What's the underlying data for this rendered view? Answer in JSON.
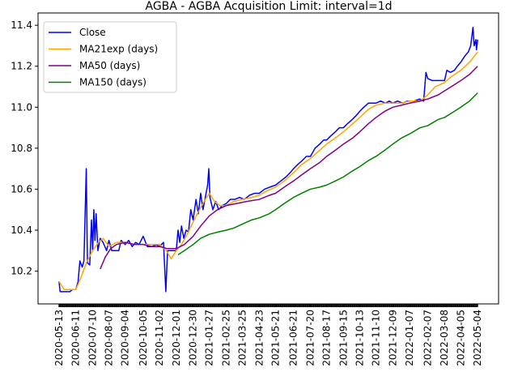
{
  "chart_data": {
    "type": "line",
    "title": "AGBA - AGBA Acquisition Limit: interval=1d",
    "xlabel": "",
    "ylabel": "",
    "ylim": [
      10.04,
      11.46
    ],
    "yticks": [
      "10.2",
      "10.4",
      "10.6",
      "10.8",
      "11.0",
      "11.2",
      "11.4"
    ],
    "x_start": "2020-05-13",
    "x_end": "2022-05-04",
    "xticks": [
      "2020-05-13",
      "2020-06-11",
      "2020-07-10",
      "2020-08-07",
      "2020-09-04",
      "2020-10-05",
      "2020-11-02",
      "2020-12-01",
      "2020-12-30",
      "2021-01-27",
      "2021-02-25",
      "2021-03-25",
      "2021-04-23",
      "2021-05-21",
      "2021-06-21",
      "2021-07-20",
      "2021-08-17",
      "2021-09-15",
      "2021-10-13",
      "2021-11-10",
      "2021-12-09",
      "2022-01-07",
      "2022-02-07",
      "2022-03-08",
      "2022-04-05",
      "2022-05-04"
    ],
    "legend_position": "top-left",
    "grid": false,
    "series": [
      {
        "name": "Close",
        "color": "#0000ff",
        "points": [
          [
            "2020-05-13",
            10.15
          ],
          [
            "2020-05-15",
            10.1
          ],
          [
            "2020-05-22",
            10.1
          ],
          [
            "2020-06-01",
            10.1
          ],
          [
            "2020-06-05",
            10.11
          ],
          [
            "2020-06-11",
            10.11
          ],
          [
            "2020-06-15",
            10.15
          ],
          [
            "2020-06-18",
            10.25
          ],
          [
            "2020-06-22",
            10.22
          ],
          [
            "2020-06-25",
            10.25
          ],
          [
            "2020-06-29",
            10.7
          ],
          [
            "2020-07-01",
            10.24
          ],
          [
            "2020-07-05",
            10.23
          ],
          [
            "2020-07-08",
            10.45
          ],
          [
            "2020-07-10",
            10.3
          ],
          [
            "2020-07-12",
            10.5
          ],
          [
            "2020-07-14",
            10.35
          ],
          [
            "2020-07-16",
            10.48
          ],
          [
            "2020-07-19",
            10.3
          ],
          [
            "2020-07-23",
            10.36
          ],
          [
            "2020-07-28",
            10.34
          ],
          [
            "2020-08-03",
            10.3
          ],
          [
            "2020-08-07",
            10.35
          ],
          [
            "2020-08-12",
            10.3
          ],
          [
            "2020-08-18",
            10.3
          ],
          [
            "2020-08-24",
            10.3
          ],
          [
            "2020-08-28",
            10.35
          ],
          [
            "2020-09-04",
            10.33
          ],
          [
            "2020-09-10",
            10.35
          ],
          [
            "2020-09-16",
            10.32
          ],
          [
            "2020-09-22",
            10.34
          ],
          [
            "2020-09-28",
            10.33
          ],
          [
            "2020-10-05",
            10.37
          ],
          [
            "2020-10-12",
            10.32
          ],
          [
            "2020-10-20",
            10.32
          ],
          [
            "2020-10-28",
            10.33
          ],
          [
            "2020-11-02",
            10.32
          ],
          [
            "2020-11-09",
            10.34
          ],
          [
            "2020-11-13",
            10.1
          ],
          [
            "2020-11-16",
            10.3
          ],
          [
            "2020-11-20",
            10.3
          ],
          [
            "2020-11-26",
            10.3
          ],
          [
            "2020-12-01",
            10.3
          ],
          [
            "2020-12-04",
            10.4
          ],
          [
            "2020-12-07",
            10.34
          ],
          [
            "2020-12-10",
            10.42
          ],
          [
            "2020-12-14",
            10.36
          ],
          [
            "2020-12-18",
            10.4
          ],
          [
            "2020-12-22",
            10.39
          ],
          [
            "2020-12-26",
            10.5
          ],
          [
            "2020-12-30",
            10.45
          ],
          [
            "2021-01-04",
            10.55
          ],
          [
            "2021-01-08",
            10.48
          ],
          [
            "2021-01-12",
            10.58
          ],
          [
            "2021-01-16",
            10.5
          ],
          [
            "2021-01-20",
            10.56
          ],
          [
            "2021-01-24",
            10.62
          ],
          [
            "2021-01-26",
            10.7
          ],
          [
            "2021-01-28",
            10.56
          ],
          [
            "2021-02-02",
            10.5
          ],
          [
            "2021-02-07",
            10.54
          ],
          [
            "2021-02-12",
            10.5
          ],
          [
            "2021-02-18",
            10.52
          ],
          [
            "2021-02-25",
            10.53
          ],
          [
            "2021-03-04",
            10.55
          ],
          [
            "2021-03-12",
            10.55
          ],
          [
            "2021-03-20",
            10.56
          ],
          [
            "2021-03-28",
            10.55
          ],
          [
            "2021-04-06",
            10.57
          ],
          [
            "2021-04-15",
            10.58
          ],
          [
            "2021-04-23",
            10.58
          ],
          [
            "2021-05-02",
            10.6
          ],
          [
            "2021-05-11",
            10.61
          ],
          [
            "2021-05-21",
            10.62
          ],
          [
            "2021-05-30",
            10.64
          ],
          [
            "2021-06-08",
            10.66
          ],
          [
            "2021-06-15",
            10.68
          ],
          [
            "2021-06-21",
            10.7
          ],
          [
            "2021-06-28",
            10.72
          ],
          [
            "2021-07-06",
            10.74
          ],
          [
            "2021-07-13",
            10.76
          ],
          [
            "2021-07-20",
            10.76
          ],
          [
            "2021-07-28",
            10.8
          ],
          [
            "2021-08-05",
            10.82
          ],
          [
            "2021-08-12",
            10.84
          ],
          [
            "2021-08-17",
            10.84
          ],
          [
            "2021-08-24",
            10.86
          ],
          [
            "2021-09-01",
            10.88
          ],
          [
            "2021-09-08",
            10.9
          ],
          [
            "2021-09-15",
            10.9
          ],
          [
            "2021-09-22",
            10.92
          ],
          [
            "2021-09-30",
            10.94
          ],
          [
            "2021-10-07",
            10.96
          ],
          [
            "2021-10-13",
            10.98
          ],
          [
            "2021-10-20",
            11.0
          ],
          [
            "2021-10-28",
            11.02
          ],
          [
            "2021-11-04",
            11.02
          ],
          [
            "2021-11-10",
            11.02
          ],
          [
            "2021-11-18",
            11.03
          ],
          [
            "2021-11-26",
            11.02
          ],
          [
            "2021-12-03",
            11.03
          ],
          [
            "2021-12-09",
            11.02
          ],
          [
            "2021-12-17",
            11.03
          ],
          [
            "2021-12-26",
            11.02
          ],
          [
            "2022-01-03",
            11.03
          ],
          [
            "2022-01-07",
            11.03
          ],
          [
            "2022-01-15",
            11.03
          ],
          [
            "2022-01-24",
            11.04
          ],
          [
            "2022-01-31",
            11.03
          ],
          [
            "2022-02-04",
            11.17
          ],
          [
            "2022-02-07",
            11.14
          ],
          [
            "2022-02-15",
            11.13
          ],
          [
            "2022-02-24",
            11.13
          ],
          [
            "2022-03-04",
            11.13
          ],
          [
            "2022-03-08",
            11.13
          ],
          [
            "2022-03-12",
            11.18
          ],
          [
            "2022-03-18",
            11.17
          ],
          [
            "2022-03-25",
            11.18
          ],
          [
            "2022-03-30",
            11.2
          ],
          [
            "2022-04-05",
            11.22
          ],
          [
            "2022-04-12",
            11.25
          ],
          [
            "2022-04-18",
            11.27
          ],
          [
            "2022-04-22",
            11.3
          ],
          [
            "2022-04-26",
            11.39
          ],
          [
            "2022-04-28",
            11.3
          ],
          [
            "2022-05-01",
            11.33
          ],
          [
            "2022-05-02",
            11.28
          ],
          [
            "2022-05-04",
            11.33
          ]
        ]
      },
      {
        "name": "MA21exp (days)",
        "color": "#ffa500",
        "points": [
          [
            "2020-05-13",
            10.15
          ],
          [
            "2020-05-22",
            10.11
          ],
          [
            "2020-06-01",
            10.11
          ],
          [
            "2020-06-11",
            10.11
          ],
          [
            "2020-06-20",
            10.17
          ],
          [
            "2020-06-29",
            10.24
          ],
          [
            "2020-07-10",
            10.3
          ],
          [
            "2020-07-20",
            10.34
          ],
          [
            "2020-07-28",
            10.36
          ],
          [
            "2020-08-07",
            10.32
          ],
          [
            "2020-08-20",
            10.34
          ],
          [
            "2020-09-04",
            10.34
          ],
          [
            "2020-09-20",
            10.33
          ],
          [
            "2020-10-05",
            10.33
          ],
          [
            "2020-10-20",
            10.33
          ],
          [
            "2020-11-02",
            10.33
          ],
          [
            "2020-11-14",
            10.3
          ],
          [
            "2020-11-22",
            10.26
          ],
          [
            "2020-12-01",
            10.3
          ],
          [
            "2020-12-10",
            10.33
          ],
          [
            "2020-12-20",
            10.38
          ],
          [
            "2020-12-30",
            10.44
          ],
          [
            "2021-01-10",
            10.5
          ],
          [
            "2021-01-20",
            10.55
          ],
          [
            "2021-01-27",
            10.58
          ],
          [
            "2021-02-05",
            10.54
          ],
          [
            "2021-02-14",
            10.52
          ],
          [
            "2021-02-25",
            10.52
          ],
          [
            "2021-03-10",
            10.54
          ],
          [
            "2021-03-25",
            10.55
          ],
          [
            "2021-04-10",
            10.56
          ],
          [
            "2021-04-23",
            10.57
          ],
          [
            "2021-05-05",
            10.59
          ],
          [
            "2021-05-21",
            10.61
          ],
          [
            "2021-06-05",
            10.64
          ],
          [
            "2021-06-21",
            10.68
          ],
          [
            "2021-07-05",
            10.72
          ],
          [
            "2021-07-20",
            10.75
          ],
          [
            "2021-08-05",
            10.79
          ],
          [
            "2021-08-17",
            10.82
          ],
          [
            "2021-09-01",
            10.85
          ],
          [
            "2021-09-15",
            10.88
          ],
          [
            "2021-10-01",
            10.92
          ],
          [
            "2021-10-13",
            10.95
          ],
          [
            "2021-10-28",
            10.99
          ],
          [
            "2021-11-10",
            11.01
          ],
          [
            "2021-11-25",
            11.02
          ],
          [
            "2021-12-09",
            11.02
          ],
          [
            "2021-12-24",
            11.02
          ],
          [
            "2022-01-07",
            11.03
          ],
          [
            "2022-01-25",
            11.03
          ],
          [
            "2022-02-07",
            11.06
          ],
          [
            "2022-02-20",
            11.1
          ],
          [
            "2022-03-08",
            11.12
          ],
          [
            "2022-03-20",
            11.15
          ],
          [
            "2022-04-05",
            11.18
          ],
          [
            "2022-04-20",
            11.22
          ],
          [
            "2022-05-04",
            11.27
          ]
        ]
      },
      {
        "name": "MA50 (days)",
        "color": "#800080",
        "points": [
          [
            "2020-07-23",
            10.21
          ],
          [
            "2020-08-01",
            10.27
          ],
          [
            "2020-08-10",
            10.31
          ],
          [
            "2020-08-20",
            10.33
          ],
          [
            "2020-09-04",
            10.34
          ],
          [
            "2020-09-20",
            10.33
          ],
          [
            "2020-10-05",
            10.33
          ],
          [
            "2020-10-20",
            10.32
          ],
          [
            "2020-11-02",
            10.32
          ],
          [
            "2020-11-15",
            10.31
          ],
          [
            "2020-12-01",
            10.31
          ],
          [
            "2020-12-15",
            10.33
          ],
          [
            "2020-12-30",
            10.37
          ],
          [
            "2021-01-12",
            10.42
          ],
          [
            "2021-01-27",
            10.47
          ],
          [
            "2021-02-10",
            10.5
          ],
          [
            "2021-02-25",
            10.52
          ],
          [
            "2021-03-15",
            10.53
          ],
          [
            "2021-04-01",
            10.54
          ],
          [
            "2021-04-23",
            10.55
          ],
          [
            "2021-05-10",
            10.57
          ],
          [
            "2021-05-21",
            10.58
          ],
          [
            "2021-06-05",
            10.61
          ],
          [
            "2021-06-21",
            10.64
          ],
          [
            "2021-07-05",
            10.67
          ],
          [
            "2021-07-20",
            10.7
          ],
          [
            "2021-08-05",
            10.73
          ],
          [
            "2021-08-17",
            10.76
          ],
          [
            "2021-09-01",
            10.79
          ],
          [
            "2021-09-15",
            10.82
          ],
          [
            "2021-10-01",
            10.85
          ],
          [
            "2021-10-13",
            10.88
          ],
          [
            "2021-10-28",
            10.92
          ],
          [
            "2021-11-10",
            10.95
          ],
          [
            "2021-11-25",
            10.98
          ],
          [
            "2021-12-09",
            11.0
          ],
          [
            "2021-12-24",
            11.01
          ],
          [
            "2022-01-07",
            11.02
          ],
          [
            "2022-01-25",
            11.03
          ],
          [
            "2022-02-07",
            11.04
          ],
          [
            "2022-02-25",
            11.06
          ],
          [
            "2022-03-08",
            11.08
          ],
          [
            "2022-03-25",
            11.11
          ],
          [
            "2022-04-05",
            11.13
          ],
          [
            "2022-04-20",
            11.16
          ],
          [
            "2022-05-04",
            11.2
          ]
        ]
      },
      {
        "name": "MA150 (days)",
        "color": "#008000",
        "points": [
          [
            "2020-12-04",
            10.28
          ],
          [
            "2020-12-15",
            10.3
          ],
          [
            "2020-12-30",
            10.33
          ],
          [
            "2021-01-12",
            10.36
          ],
          [
            "2021-01-27",
            10.38
          ],
          [
            "2021-02-10",
            10.39
          ],
          [
            "2021-02-25",
            10.4
          ],
          [
            "2021-03-10",
            10.41
          ],
          [
            "2021-03-25",
            10.43
          ],
          [
            "2021-04-10",
            10.45
          ],
          [
            "2021-04-23",
            10.46
          ],
          [
            "2021-05-10",
            10.48
          ],
          [
            "2021-05-21",
            10.5
          ],
          [
            "2021-06-05",
            10.53
          ],
          [
            "2021-06-21",
            10.56
          ],
          [
            "2021-07-05",
            10.58
          ],
          [
            "2021-07-20",
            10.6
          ],
          [
            "2021-08-05",
            10.61
          ],
          [
            "2021-08-17",
            10.62
          ],
          [
            "2021-09-01",
            10.64
          ],
          [
            "2021-09-15",
            10.66
          ],
          [
            "2021-10-01",
            10.69
          ],
          [
            "2021-10-13",
            10.71
          ],
          [
            "2021-10-28",
            10.74
          ],
          [
            "2021-11-10",
            10.76
          ],
          [
            "2021-11-25",
            10.79
          ],
          [
            "2021-12-09",
            10.82
          ],
          [
            "2021-12-24",
            10.85
          ],
          [
            "2022-01-07",
            10.87
          ],
          [
            "2022-01-25",
            10.9
          ],
          [
            "2022-02-07",
            10.91
          ],
          [
            "2022-02-25",
            10.94
          ],
          [
            "2022-03-08",
            10.95
          ],
          [
            "2022-03-25",
            10.98
          ],
          [
            "2022-04-05",
            11.0
          ],
          [
            "2022-04-20",
            11.03
          ],
          [
            "2022-05-04",
            11.07
          ]
        ]
      }
    ]
  }
}
